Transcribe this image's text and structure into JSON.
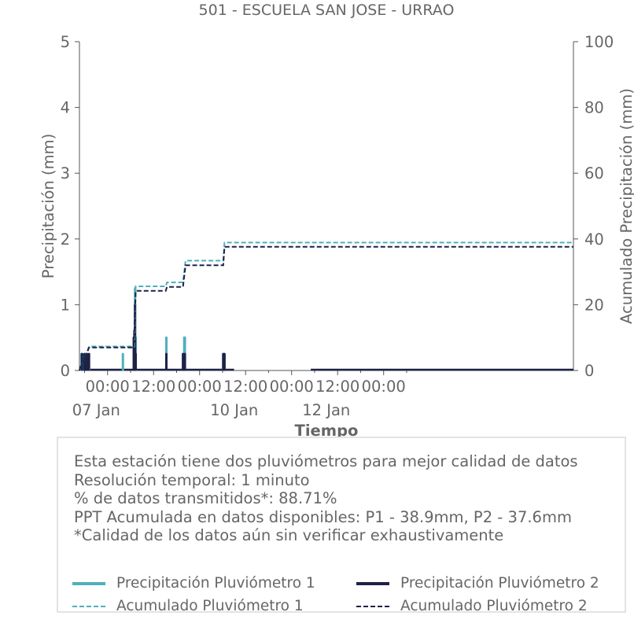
{
  "chart_data": {
    "type": "line",
    "title": "501 - ESCUELA SAN JOSE - URRAO",
    "xlabel": "Tiempo",
    "ylabel": "Precipitación (mm)",
    "y2label": "Acumulado Precipitación (mm)",
    "ylim": [
      0,
      5
    ],
    "y2lim": [
      0,
      100
    ],
    "yticks": [
      0,
      1,
      2,
      3,
      4,
      5
    ],
    "y2ticks": [
      0,
      20,
      40,
      60,
      80,
      100
    ],
    "xlim": [
      "2023-01-07T16:40",
      "2023-01-13T01:30"
    ],
    "x_tick_labels": [
      {
        "x": "2023-01-08T00:00",
        "time": "00:00",
        "date": "07 Jan"
      },
      {
        "x": "2023-01-08T12:00",
        "time": "12:00",
        "date": ""
      },
      {
        "x": "2023-01-09T00:00",
        "time": "00:00",
        "date": ""
      },
      {
        "x": "2023-01-09T12:00",
        "time": "12:00",
        "date": "10 Jan"
      },
      {
        "x": "2023-01-10T00:00",
        "time": "00:00",
        "date": ""
      },
      {
        "x": "2023-01-10T12:00",
        "time": "12:00",
        "date": "12 Jan"
      },
      {
        "x": "2023-01-11T00:00",
        "time": "00:00",
        "date": ""
      }
    ],
    "grid": false,
    "series": [
      {
        "name": "Precipitación Pluviómetro 1",
        "axis": "left",
        "style": "solid",
        "color": "#4fb0ba",
        "x": [
          "2023-01-07T17:10",
          "2023-01-07T17:30",
          "2023-01-07T18:10",
          "2023-01-07T18:30",
          "2023-01-07T19:00",
          "2023-01-08T04:00",
          "2023-01-08T07:00",
          "2023-01-08T07:10",
          "2023-01-08T07:20",
          "2023-01-08T15:20",
          "2023-01-08T19:50",
          "2023-01-08T20:00",
          "2023-01-08T20:10",
          "2023-01-09T06:10",
          "2023-01-09T06:20"
        ],
        "y": [
          0.25,
          0.25,
          0.25,
          0.25,
          0.25,
          0.25,
          0.25,
          1.25,
          0.5,
          0.5,
          0.25,
          0.5,
          0.5,
          0.25,
          0.25
        ]
      },
      {
        "name": "Precipitación Pluviómetro 2",
        "axis": "left",
        "style": "solid",
        "color": "#1e2247",
        "x": [
          "2023-01-07T17:20",
          "2023-01-07T18:00",
          "2023-01-07T18:20",
          "2023-01-07T18:40",
          "2023-01-07T19:10",
          "2023-01-08T06:50",
          "2023-01-08T07:00",
          "2023-01-08T07:10",
          "2023-01-08T07:20",
          "2023-01-08T15:20",
          "2023-01-08T19:40",
          "2023-01-08T20:00",
          "2023-01-08T20:10",
          "2023-01-09T06:10",
          "2023-01-09T06:30"
        ],
        "y": [
          0.25,
          0.25,
          0.25,
          0.25,
          0.25,
          0.5,
          0.6,
          1.0,
          0.25,
          0.25,
          0.25,
          0.25,
          0.25,
          0.25,
          0.25
        ]
      },
      {
        "name": "Acumulado Pluviómetro 1",
        "axis": "right",
        "style": "dashed",
        "color": "#4fb0ba",
        "x": [
          "2023-01-07T16:40",
          "2023-01-07T17:00",
          "2023-01-07T18:00",
          "2023-01-07T19:10",
          "2023-01-08T07:00",
          "2023-01-08T07:20",
          "2023-01-08T15:10",
          "2023-01-08T15:30",
          "2023-01-08T19:40",
          "2023-01-08T20:20",
          "2023-01-09T06:10",
          "2023-01-09T06:30",
          "2023-01-13T01:30"
        ],
        "y": [
          0,
          1.5,
          3.5,
          7.3,
          7.3,
          25.6,
          25.6,
          26.8,
          26.8,
          33.4,
          33.4,
          38.9,
          38.9
        ]
      },
      {
        "name": "Acumulado Pluviómetro 2",
        "axis": "right",
        "style": "dashed",
        "color": "#1e2247",
        "x": [
          "2023-01-07T16:40",
          "2023-01-07T17:00",
          "2023-01-07T18:00",
          "2023-01-07T19:10",
          "2023-01-08T06:50",
          "2023-01-08T07:20",
          "2023-01-08T15:10",
          "2023-01-08T15:30",
          "2023-01-08T19:40",
          "2023-01-08T20:20",
          "2023-01-09T06:10",
          "2023-01-09T06:30",
          "2023-01-13T01:30"
        ],
        "y": [
          0,
          1.5,
          3.5,
          7.0,
          7.0,
          24.2,
          24.2,
          25.4,
          25.4,
          32.0,
          32.0,
          37.6,
          37.6
        ]
      }
    ],
    "legend_position": "bottom"
  },
  "info": {
    "lines": [
      "Esta estación tiene dos pluviómetros para mejor calidad de datos",
      "Resolución temporal: 1 minuto",
      "% de datos transmitidos*: 88.71%",
      "PPT Acumulada en datos disponibles: P1 - 38.9mm, P2 - 37.6mm",
      "*Calidad de los datos aún sin verificar exhaustivamente"
    ]
  },
  "legend": [
    {
      "label": "Precipitación Pluviómetro 1",
      "color": "#4fb0ba",
      "style": "solid"
    },
    {
      "label": "Precipitación Pluviómetro 2",
      "color": "#1e2247",
      "style": "solid"
    },
    {
      "label": "Acumulado Pluviómetro 1",
      "color": "#4fb0ba",
      "style": "dashed"
    },
    {
      "label": "Acumulado Pluviómetro 2",
      "color": "#1e2247",
      "style": "dashed"
    }
  ]
}
